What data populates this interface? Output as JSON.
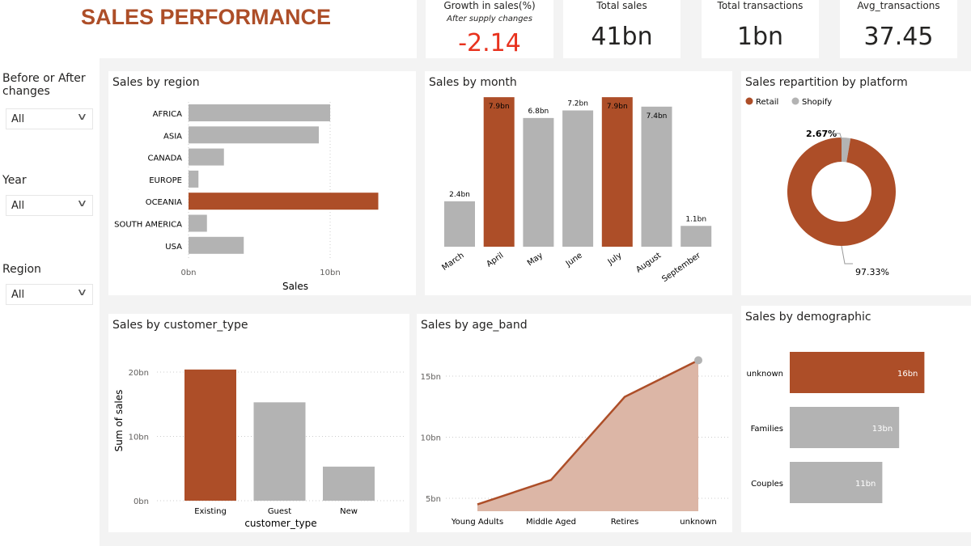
{
  "title": "SALES PERFORMANCE",
  "kpis": [
    {
      "label": "Growth in sales(%)",
      "sublabel": "After supply changes",
      "value": "-2.14",
      "color": "#e8321e"
    },
    {
      "label": "Total sales",
      "value": "41bn"
    },
    {
      "label": "Total transactions",
      "value": "1bn"
    },
    {
      "label": "Avg_transactions",
      "value": "37.45"
    }
  ],
  "filters": [
    {
      "label": "Before or After changes",
      "value": "All"
    },
    {
      "label": "Year",
      "value": "All"
    },
    {
      "label": "Region",
      "value": "All"
    }
  ],
  "colors": {
    "accent": "#ad4e28",
    "neutral": "#b3b3b3",
    "area": "#dcb6a6"
  },
  "chart_data": [
    {
      "type": "bar",
      "orientation": "horizontal",
      "title": "Sales by region",
      "xlabel": "Sales",
      "categories": [
        "AFRICA",
        "ASIA",
        "CANADA",
        "EUROPE",
        "OCEANIA",
        "SOUTH AMERICA",
        "USA"
      ],
      "values": [
        10.0,
        9.2,
        2.5,
        0.7,
        13.4,
        1.3,
        3.9
      ],
      "unit": "bn",
      "highlight": "OCEANIA",
      "xticks": [
        "0bn",
        "10bn"
      ],
      "xlim": [
        0,
        14
      ]
    },
    {
      "type": "bar",
      "title": "Sales by month",
      "categories": [
        "March",
        "April",
        "May",
        "June",
        "July",
        "August",
        "September"
      ],
      "values": [
        2.4,
        7.9,
        6.8,
        7.2,
        7.9,
        7.4,
        1.1
      ],
      "labels": [
        "2.4bn",
        "7.9bn",
        "6.8bn",
        "7.2bn",
        "7.9bn",
        "7.4bn",
        "1.1bn"
      ],
      "highlight": [
        "April",
        "July"
      ]
    },
    {
      "type": "pie",
      "donut": true,
      "title": "Sales repartition by platform",
      "legend": [
        "Retail",
        "Shopify"
      ],
      "values": [
        97.33,
        2.67
      ],
      "labels": [
        "97.33%",
        "2.67%"
      ],
      "legend_position": "top-left"
    },
    {
      "type": "bar",
      "title": "Sales by customer_type",
      "xlabel": "customer_type",
      "ylabel": "Sum of sales",
      "categories": [
        "Existing",
        "Guest",
        "New"
      ],
      "values": [
        20.4,
        15.3,
        5.3
      ],
      "yticks": [
        "0bn",
        "10bn",
        "20bn"
      ],
      "ylim": [
        0,
        20
      ],
      "highlight": "Existing"
    },
    {
      "type": "area",
      "title": "Sales by age_band",
      "categories": [
        "Young Adults",
        "Middle Aged",
        "Retires",
        "unknown"
      ],
      "values": [
        4.5,
        6.5,
        13.3,
        16.3
      ],
      "yticks": [
        "5bn",
        "10bn",
        "15bn"
      ],
      "ylim": [
        5,
        15
      ]
    },
    {
      "type": "bar",
      "orientation": "horizontal",
      "title": "Sales by demographic",
      "categories": [
        "unknown",
        "Families",
        "Couples"
      ],
      "values": [
        16,
        13,
        11
      ],
      "labels": [
        "16bn",
        "13bn",
        "11bn"
      ],
      "highlight": "unknown"
    }
  ]
}
